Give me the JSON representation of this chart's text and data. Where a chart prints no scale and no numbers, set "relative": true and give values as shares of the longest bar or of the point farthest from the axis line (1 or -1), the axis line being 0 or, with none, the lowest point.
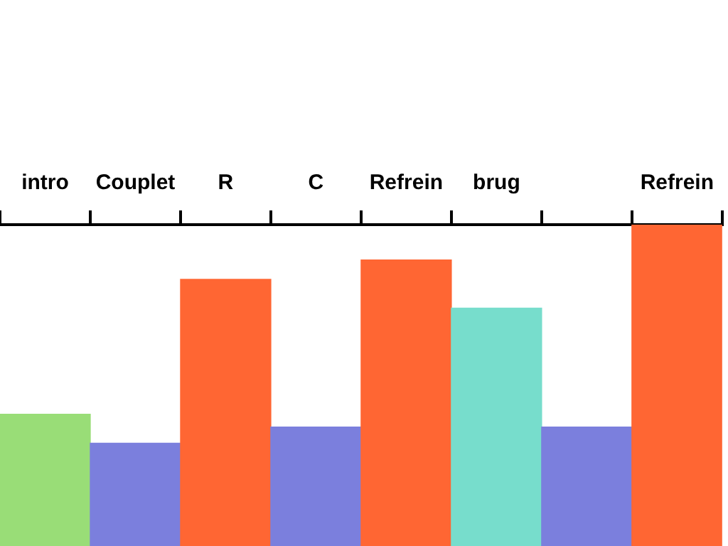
{
  "chart_data": {
    "type": "bar",
    "relative": true,
    "legend": false,
    "grid": false,
    "categories": [
      "intro",
      "Couplet",
      "R",
      "C",
      "Refrein",
      "brug",
      null,
      "Refrein"
    ],
    "values": [
      0.41,
      0.32,
      0.83,
      0.37,
      0.89,
      0.74,
      0.37,
      1
    ],
    "colors": [
      "#99dd77",
      "#7b7fdd",
      "#ff6633",
      "#7b7fdd",
      "#ff6633",
      "#77ddcc",
      "#7b7fdd",
      "#ff6633"
    ]
  }
}
